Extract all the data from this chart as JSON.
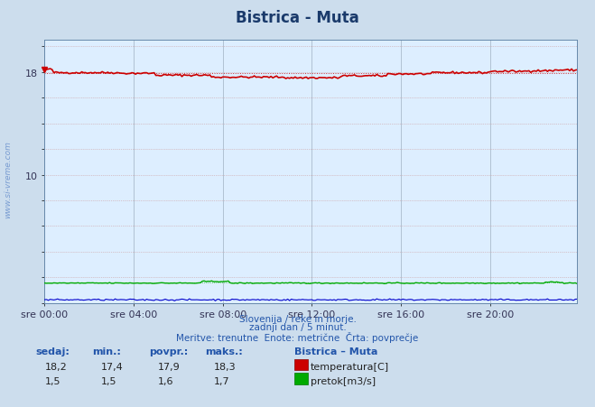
{
  "title": "Bistrica - Muta",
  "title_color": "#1a3a6b",
  "fig_bg_color": "#ccdded",
  "plot_bg_color": "#ddeeff",
  "xlim": [
    0,
    287
  ],
  "ylim_min": 0,
  "ylim_max": 20.5,
  "ytick_positions": [
    0,
    2,
    4,
    6,
    8,
    10,
    12,
    14,
    16,
    18,
    20
  ],
  "ytick_labels_show": {
    "0": "",
    "2": "",
    "4": "",
    "6": "",
    "8": "",
    "10": "10",
    "12": "",
    "14": "",
    "16": "",
    "18": "18",
    "20": ""
  },
  "xtick_labels": [
    "sre 00:00",
    "sre 04:00",
    "sre 08:00",
    "sre 12:00",
    "sre 16:00",
    "sre 20:00"
  ],
  "xtick_positions": [
    0,
    48,
    96,
    144,
    192,
    240
  ],
  "temp_color": "#cc0000",
  "flow_color": "#00aa00",
  "blue_line_color": "#0000cc",
  "grid_h_color": "#cc9999",
  "grid_v_color": "#aabbcc",
  "footer_color": "#2255aa",
  "footer_line1": "Slovenija / reke in morje.",
  "footer_line2": "zadnji dan / 5 minut.",
  "footer_line3": "Meritve: trenutne  Enote: metrične  Črta: povprečje",
  "legend_title": "Bistrica – Muta",
  "legend_temp": "temperatura[C]",
  "legend_flow": "pretok[m3/s]",
  "table_headers": [
    "sedaj:",
    "min.:",
    "povpr.:",
    "maks.:"
  ],
  "table_temp": [
    "18,2",
    "17,4",
    "17,9",
    "18,3"
  ],
  "table_flow": [
    "1,5",
    "1,5",
    "1,6",
    "1,7"
  ],
  "watermark": "www.si-vreme.com",
  "watermark_color": "#3366bb",
  "temp_ref": 17.9,
  "flow_ref": 1.6,
  "arrow_color": "#cc0000"
}
